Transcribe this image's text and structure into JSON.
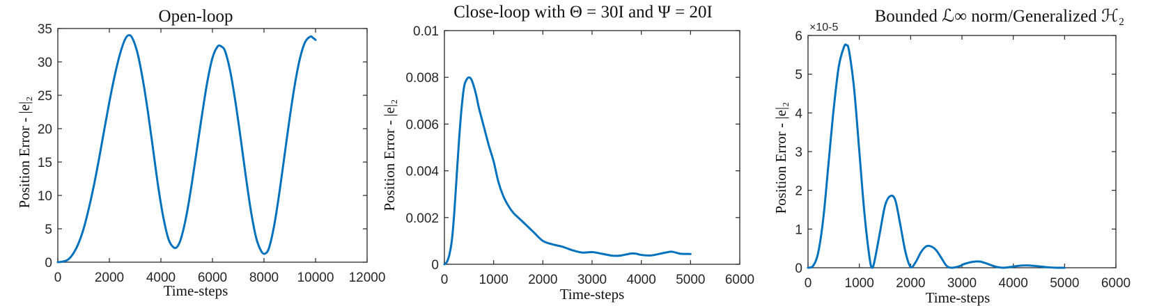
{
  "figure": {
    "line_color": "#0072BD",
    "axis_color": "#262626"
  },
  "chart_data": [
    {
      "type": "line",
      "title": "Open-loop",
      "xlabel": "Time-steps",
      "ylabel": "Position Error - |e|₂",
      "xlim": [
        0,
        12000
      ],
      "ylim": [
        0,
        35
      ],
      "xticks": [
        0,
        2000,
        4000,
        6000,
        8000,
        10000,
        12000
      ],
      "yticks": [
        0,
        5,
        10,
        15,
        20,
        25,
        30,
        35
      ],
      "xtick_labels": [
        "0",
        "2000",
        "4000",
        "6000",
        "8000",
        "10000",
        "12000"
      ],
      "ytick_labels": [
        "0",
        "5",
        "10",
        "15",
        "20",
        "25",
        "30",
        "35"
      ],
      "grid": false,
      "series": [
        {
          "x": [
            0,
            200,
            400,
            600,
            800,
            1000,
            1200,
            1400,
            1600,
            1800,
            2000,
            2200,
            2400,
            2600,
            2750,
            2900,
            3100,
            3300,
            3500,
            3700,
            3900,
            4100,
            4300,
            4500,
            4650,
            4800,
            5000,
            5200,
            5400,
            5600,
            5800,
            6000,
            6200,
            6350,
            6500,
            6700,
            6900,
            7100,
            7300,
            7500,
            7700,
            7900,
            8050,
            8200,
            8400,
            8600,
            8800,
            9000,
            9200,
            9400,
            9600,
            9800,
            9900,
            10000
          ],
          "y": [
            0,
            0.1,
            0.4,
            1.3,
            2.8,
            5,
            8,
            11.5,
            15.5,
            19.8,
            24,
            27.8,
            31,
            33.3,
            34,
            33.5,
            31.2,
            27.3,
            22.4,
            16.8,
            11.2,
            6.6,
            3.4,
            2.2,
            2.4,
            3.8,
            7.2,
            11.8,
            17,
            22.2,
            27,
            30.6,
            32.3,
            32.3,
            31.5,
            28.4,
            23.8,
            18.4,
            12.7,
            7.5,
            3.6,
            1.6,
            1.3,
            2.2,
            5.6,
            10.5,
            16.1,
            21.7,
            26.7,
            30.6,
            33,
            33.8,
            33.6,
            33.3
          ]
        }
      ]
    },
    {
      "type": "line",
      "title": "Close-loop with Θ = 30I and Ψ = 20I",
      "xlabel": "Time-steps",
      "ylabel": "Position Error - |e|₂",
      "xlim": [
        0,
        6000
      ],
      "ylim": [
        0,
        0.01
      ],
      "xticks": [
        0,
        1000,
        2000,
        3000,
        4000,
        5000,
        6000
      ],
      "yticks": [
        0,
        0.002,
        0.004,
        0.006,
        0.008,
        0.01
      ],
      "xtick_labels": [
        "0",
        "1000",
        "2000",
        "3000",
        "4000",
        "5000",
        "6000"
      ],
      "ytick_labels": [
        "0",
        "0.002",
        "0.004",
        "0.006",
        "0.008",
        "0.01"
      ],
      "grid": false,
      "series": [
        {
          "x": [
            0,
            50,
            100,
            150,
            200,
            250,
            300,
            350,
            400,
            450,
            500,
            550,
            600,
            650,
            700,
            800,
            900,
            1000,
            1100,
            1200,
            1300,
            1400,
            1500,
            1600,
            1800,
            2000,
            2200,
            2400,
            2600,
            2800,
            3000,
            3200,
            3400,
            3500,
            3600,
            3800,
            3900,
            4000,
            4200,
            4400,
            4600,
            4700,
            4800,
            5000
          ],
          "y": [
            0,
            0.0001,
            0.0004,
            0.001,
            0.0022,
            0.0038,
            0.0054,
            0.0067,
            0.0076,
            0.0079,
            0.008,
            0.0079,
            0.0076,
            0.0072,
            0.0067,
            0.0059,
            0.0051,
            0.0044,
            0.0035,
            0.0029,
            0.0025,
            0.0022,
            0.002,
            0.0018,
            0.0014,
            0.001,
            0.00085,
            0.00075,
            0.0006,
            0.0005,
            0.00052,
            0.00045,
            0.00037,
            0.00036,
            0.00038,
            0.00046,
            0.00045,
            0.0004,
            0.00038,
            0.00046,
            0.00054,
            0.0005,
            0.00045,
            0.00044
          ]
        }
      ]
    },
    {
      "type": "line",
      "title": "Bounded ℒ∞ norm/Generalized ℋ₂",
      "xlabel": "Time-steps",
      "ylabel": "Position Error - |e|₂",
      "xlim": [
        0,
        6000
      ],
      "ylim": [
        0,
        6
      ],
      "exponent_label": "×10-5",
      "xticks": [
        0,
        1000,
        2000,
        3000,
        4000,
        5000,
        6000
      ],
      "yticks": [
        0,
        1,
        2,
        3,
        4,
        5,
        6
      ],
      "xtick_labels": [
        "0",
        "1000",
        "2000",
        "3000",
        "4000",
        "5000",
        "6000"
      ],
      "ytick_labels": [
        "0",
        "1",
        "2",
        "3",
        "4",
        "5",
        "6"
      ],
      "grid": false,
      "series": [
        {
          "x": [
            0,
            100,
            200,
            300,
            400,
            500,
            600,
            700,
            750,
            800,
            900,
            1000,
            1100,
            1200,
            1250,
            1300,
            1400,
            1500,
            1600,
            1700,
            1800,
            1900,
            2000,
            2100,
            2200,
            2300,
            2400,
            2500,
            2600,
            2700,
            2800,
            2950,
            3050,
            3200,
            3350,
            3500,
            3650,
            3800,
            3950,
            4100,
            4250,
            4400,
            4550,
            4700,
            4850,
            5000
          ],
          "y": [
            0,
            0.05,
            0.4,
            1.3,
            2.7,
            4.1,
            5.2,
            5.7,
            5.75,
            5.6,
            4.6,
            3,
            1.4,
            0.25,
            0,
            0.2,
            0.9,
            1.6,
            1.85,
            1.75,
            1.1,
            0.4,
            0.02,
            0.15,
            0.4,
            0.55,
            0.55,
            0.45,
            0.25,
            0.05,
            0,
            0.04,
            0.1,
            0.15,
            0.16,
            0.1,
            0.03,
            0,
            0.02,
            0.05,
            0.06,
            0.05,
            0.03,
            0.01,
            0,
            0
          ]
        }
      ]
    }
  ]
}
